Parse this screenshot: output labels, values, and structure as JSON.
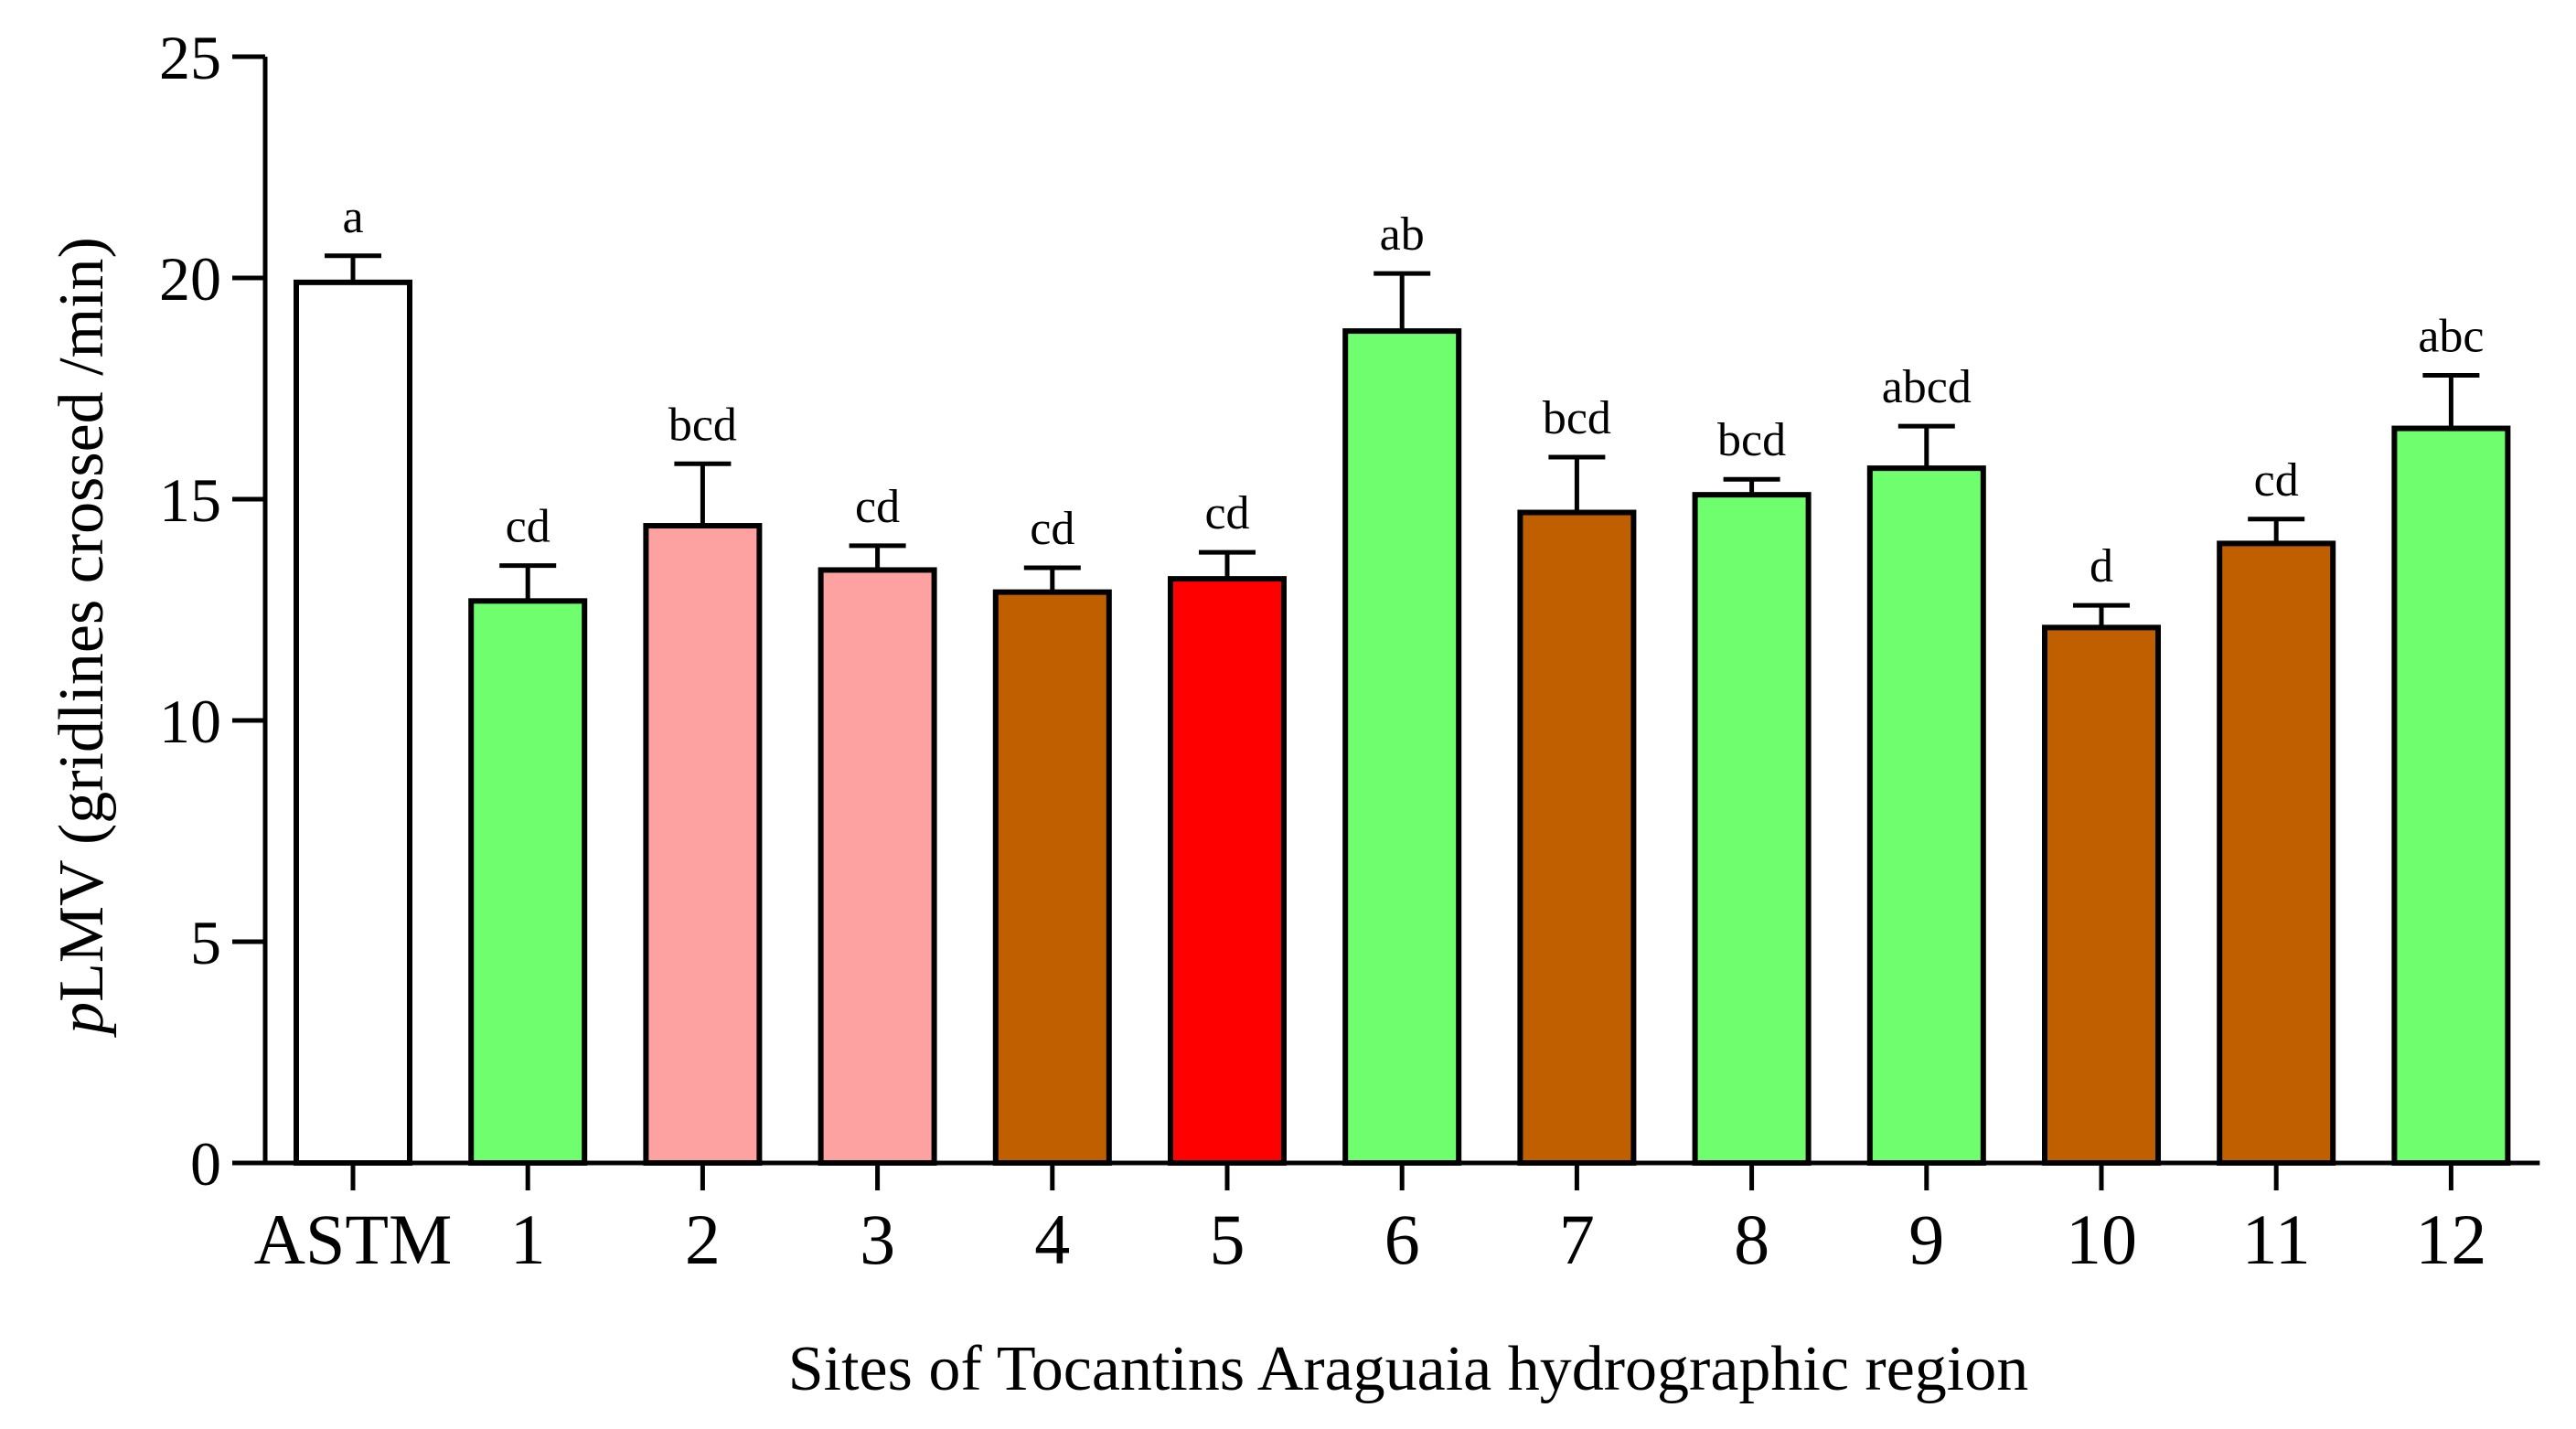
{
  "chart_data": {
    "type": "bar",
    "title": "",
    "xlabel": "Sites of Tocantins Araguaia hydrographic region",
    "ylabel": {
      "italic": "p",
      "rest": "LMV (gridlines crossed /min)"
    },
    "ylim": [
      0,
      25
    ],
    "yticks": [
      "0",
      "5",
      "10",
      "15",
      "20",
      "25"
    ],
    "categories": [
      "ASTM",
      "1",
      "2",
      "3",
      "4",
      "5",
      "6",
      "7",
      "8",
      "9",
      "10",
      "11",
      "12"
    ],
    "values": [
      19.9,
      12.7,
      14.4,
      13.4,
      12.9,
      13.2,
      18.8,
      14.7,
      15.1,
      15.7,
      12.1,
      14.0,
      16.6
    ],
    "errors": [
      0.6,
      0.8,
      1.4,
      0.55,
      0.55,
      0.6,
      1.3,
      1.25,
      0.35,
      0.95,
      0.5,
      0.55,
      1.2
    ],
    "letters": [
      "a",
      "cd",
      "bcd",
      "cd",
      "cd",
      "cd",
      "ab",
      "bcd",
      "bcd",
      "abcd",
      "d",
      "cd",
      "abc"
    ],
    "colors": [
      "#ffffff",
      "#6efe6e",
      "#fea1a1",
      "#fea1a1",
      "#bf5f00",
      "#fe0000",
      "#6efe6e",
      "#bf5f00",
      "#6efe6e",
      "#6efe6e",
      "#bf5f00",
      "#bf5f00",
      "#6efe6e"
    ],
    "grid": false,
    "legend": "none"
  }
}
